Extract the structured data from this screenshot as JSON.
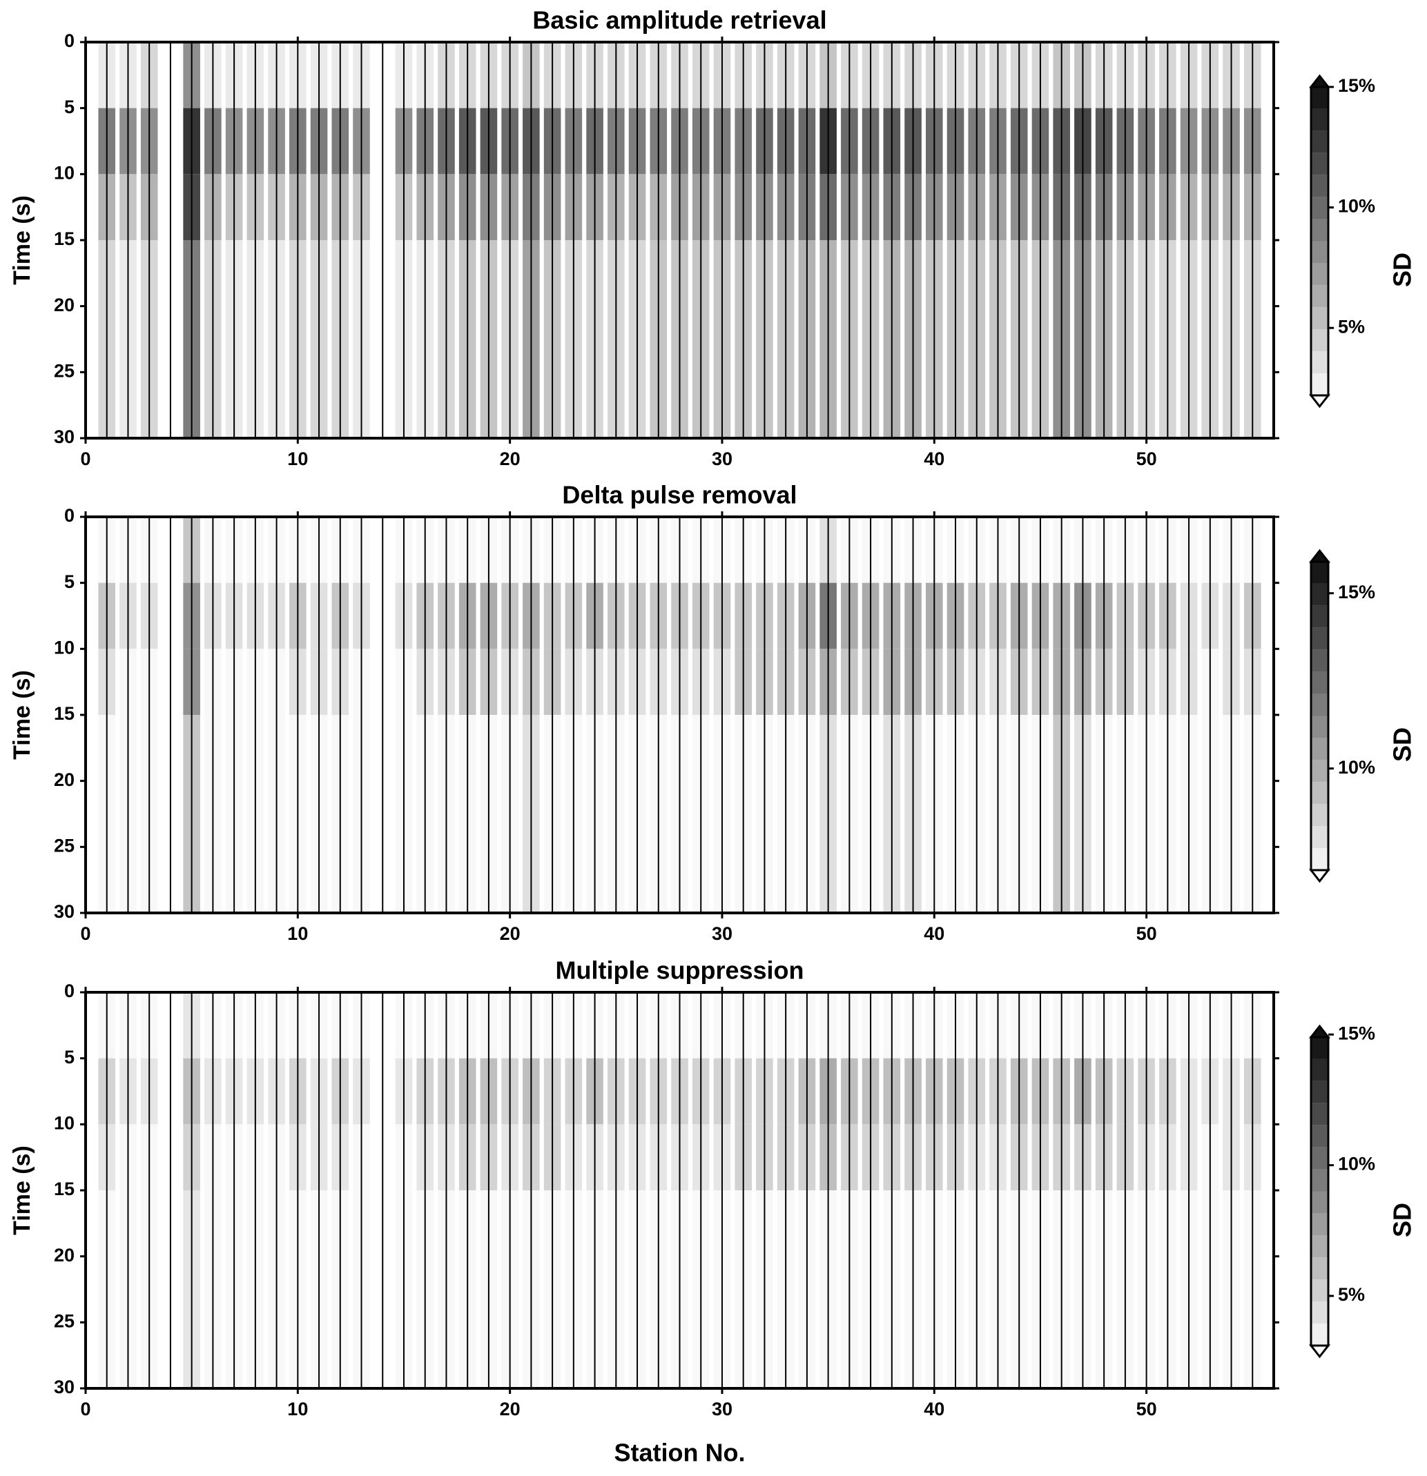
{
  "chart_data": [
    {
      "type": "heatmap",
      "title": "Basic amplitude retrieval",
      "ylabel": "Time (s)",
      "colorbar_label": "SD",
      "x": [
        1,
        2,
        3,
        4,
        5,
        6,
        7,
        8,
        9,
        10,
        11,
        12,
        13,
        14,
        15,
        16,
        17,
        18,
        19,
        20,
        21,
        22,
        23,
        24,
        25,
        26,
        27,
        28,
        29,
        30,
        31,
        32,
        33,
        34,
        35,
        36,
        37,
        38,
        39,
        40,
        41,
        42,
        43,
        44,
        45,
        46,
        47,
        48,
        49,
        50,
        51,
        52,
        53,
        54,
        55
      ],
      "time_bins": [
        0,
        5,
        10,
        15,
        30
      ],
      "values": [
        [
          3,
          3,
          4,
          null,
          8,
          3,
          3,
          3,
          3,
          3,
          3,
          3,
          3,
          null,
          3,
          3,
          4,
          4,
          4,
          4,
          5,
          4,
          4,
          4,
          4,
          4,
          4,
          4,
          4,
          4,
          4,
          4,
          4,
          4,
          5,
          4,
          4,
          4,
          4,
          4,
          4,
          4,
          4,
          4,
          4,
          5,
          5,
          4,
          4,
          4,
          4,
          4,
          4,
          4,
          4
        ],
        [
          9,
          8,
          8,
          null,
          13,
          9,
          8,
          8,
          8,
          9,
          9,
          9,
          8,
          null,
          8,
          9,
          10,
          11,
          11,
          10,
          11,
          10,
          9,
          10,
          9,
          9,
          9,
          9,
          9,
          9,
          9,
          10,
          10,
          10,
          13,
          10,
          10,
          11,
          11,
          10,
          10,
          9,
          9,
          10,
          10,
          11,
          12,
          11,
          10,
          9,
          9,
          8,
          8,
          8,
          8
        ],
        [
          6,
          5,
          6,
          null,
          12,
          6,
          5,
          5,
          5,
          6,
          6,
          6,
          5,
          null,
          5,
          6,
          7,
          8,
          8,
          7,
          9,
          8,
          7,
          7,
          6,
          6,
          6,
          7,
          7,
          7,
          8,
          8,
          8,
          9,
          10,
          8,
          8,
          9,
          9,
          8,
          8,
          7,
          7,
          8,
          8,
          10,
          10,
          9,
          8,
          7,
          7,
          6,
          6,
          6,
          6
        ],
        [
          4,
          3,
          4,
          null,
          9,
          4,
          3,
          3,
          3,
          4,
          4,
          4,
          3,
          null,
          3,
          3,
          4,
          5,
          5,
          4,
          7,
          5,
          4,
          4,
          4,
          4,
          5,
          5,
          5,
          5,
          5,
          5,
          5,
          6,
          6,
          5,
          5,
          6,
          6,
          5,
          5,
          5,
          5,
          5,
          5,
          8,
          8,
          6,
          5,
          4,
          4,
          4,
          4,
          4,
          4
        ]
      ],
      "xlim": [
        0,
        56
      ],
      "ylim": [
        0,
        30
      ],
      "y_inverted": true,
      "xticks": [
        0,
        10,
        20,
        30,
        40,
        50
      ],
      "yticks": [
        0,
        5,
        10,
        15,
        20,
        25,
        30
      ],
      "clim": [
        2.2,
        15
      ],
      "cticks": [
        {
          "value": 5,
          "label": "5%"
        },
        {
          "value": 10,
          "label": "10%"
        },
        {
          "value": 15,
          "label": "15%"
        }
      ]
    },
    {
      "type": "heatmap",
      "title": "Delta pulse removal",
      "ylabel": "Time (s)",
      "colorbar_label": "SD",
      "x": [
        1,
        2,
        3,
        4,
        5,
        6,
        7,
        8,
        9,
        10,
        11,
        12,
        13,
        14,
        15,
        16,
        17,
        18,
        19,
        20,
        21,
        22,
        23,
        24,
        25,
        26,
        27,
        28,
        29,
        30,
        31,
        32,
        33,
        34,
        35,
        36,
        37,
        38,
        39,
        40,
        41,
        42,
        43,
        44,
        45,
        46,
        47,
        48,
        49,
        50,
        51,
        52,
        53,
        54,
        55
      ],
      "time_bins": [
        0,
        5,
        10,
        15,
        30
      ],
      "values": [
        [
          7,
          7,
          7,
          null,
          9,
          7,
          7,
          7,
          7,
          7,
          7,
          7,
          7,
          null,
          7,
          7,
          7,
          7,
          7,
          7,
          7,
          7,
          7,
          7,
          7,
          7,
          7,
          7,
          7,
          7,
          7,
          7,
          7,
          7,
          8,
          7,
          7,
          7,
          7,
          7,
          7,
          7,
          7,
          7,
          7,
          7,
          7,
          7,
          7,
          7,
          7,
          7,
          7,
          7,
          7
        ],
        [
          9,
          8,
          8,
          null,
          11,
          8,
          8,
          8,
          8,
          9,
          8,
          9,
          8,
          null,
          8,
          9,
          9,
          10,
          10,
          9,
          10,
          9,
          9,
          10,
          9,
          9,
          9,
          9,
          9,
          9,
          9,
          9,
          9,
          10,
          12,
          10,
          10,
          10,
          10,
          10,
          10,
          9,
          9,
          10,
          10,
          10,
          11,
          10,
          9,
          9,
          9,
          8,
          8,
          8,
          9
        ],
        [
          8,
          7,
          7,
          null,
          11,
          7,
          7,
          7,
          7,
          8,
          8,
          8,
          7,
          null,
          7,
          8,
          8,
          9,
          9,
          8,
          9,
          9,
          8,
          8,
          8,
          8,
          8,
          8,
          8,
          8,
          9,
          9,
          9,
          9,
          10,
          9,
          9,
          10,
          10,
          9,
          9,
          8,
          8,
          9,
          9,
          10,
          10,
          9,
          9,
          8,
          8,
          8,
          7,
          8,
          8
        ],
        [
          7,
          7,
          7,
          null,
          9,
          7,
          7,
          7,
          7,
          7,
          7,
          7,
          7,
          null,
          7,
          7,
          7,
          7,
          7,
          7,
          8,
          7,
          7,
          7,
          7,
          7,
          7,
          7,
          7,
          7,
          7,
          7,
          7,
          7,
          8,
          7,
          7,
          8,
          8,
          7,
          7,
          7,
          7,
          7,
          7,
          9,
          8,
          7,
          7,
          7,
          7,
          7,
          7,
          7,
          7
        ]
      ],
      "xlim": [
        0,
        56
      ],
      "ylim": [
        0,
        30
      ],
      "y_inverted": true,
      "xticks": [
        0,
        10,
        20,
        30,
        40,
        50
      ],
      "yticks": [
        0,
        5,
        10,
        15,
        20,
        25,
        30
      ],
      "clim": [
        7.1,
        15.9
      ],
      "cticks": [
        {
          "value": 10,
          "label": "10%"
        },
        {
          "value": 15,
          "label": "15%"
        }
      ]
    },
    {
      "type": "heatmap",
      "title": "Multiple suppression",
      "ylabel": "Time (s)",
      "xlabel": "Station No.",
      "colorbar_label": "SD",
      "x": [
        1,
        2,
        3,
        4,
        5,
        6,
        7,
        8,
        9,
        10,
        11,
        12,
        13,
        14,
        15,
        16,
        17,
        18,
        19,
        20,
        21,
        22,
        23,
        24,
        25,
        26,
        27,
        28,
        29,
        30,
        31,
        32,
        33,
        34,
        35,
        36,
        37,
        38,
        39,
        40,
        41,
        42,
        43,
        44,
        45,
        46,
        47,
        48,
        49,
        50,
        51,
        52,
        53,
        54,
        55
      ],
      "time_bins": [
        0,
        5,
        10,
        15,
        30
      ],
      "values": [
        [
          3,
          3,
          3,
          null,
          4,
          3,
          3,
          3,
          3,
          3,
          3,
          3,
          3,
          null,
          3,
          3,
          3,
          3,
          3,
          3,
          3,
          3,
          3,
          3,
          3,
          3,
          3,
          3,
          3,
          3,
          3,
          3,
          3,
          3,
          3,
          3,
          3,
          3,
          3,
          3,
          3,
          3,
          3,
          3,
          3,
          3,
          3,
          3,
          3,
          3,
          3,
          3,
          3,
          3,
          3
        ],
        [
          5,
          4,
          4,
          null,
          6,
          4,
          4,
          4,
          4,
          5,
          4,
          5,
          4,
          null,
          4,
          5,
          5,
          6,
          6,
          5,
          6,
          5,
          5,
          6,
          5,
          5,
          5,
          5,
          5,
          5,
          5,
          5,
          5,
          6,
          7,
          6,
          6,
          6,
          6,
          6,
          6,
          5,
          5,
          6,
          6,
          6,
          7,
          6,
          5,
          5,
          5,
          4,
          4,
          4,
          5
        ],
        [
          4,
          3,
          3,
          null,
          5,
          3,
          3,
          3,
          3,
          4,
          4,
          4,
          3,
          null,
          3,
          4,
          4,
          5,
          5,
          4,
          5,
          5,
          4,
          4,
          4,
          4,
          4,
          4,
          4,
          4,
          5,
          5,
          5,
          5,
          6,
          5,
          5,
          5,
          5,
          5,
          5,
          4,
          4,
          5,
          5,
          5,
          5,
          5,
          5,
          4,
          4,
          4,
          3,
          4,
          4
        ],
        [
          3,
          3,
          3,
          null,
          4,
          3,
          3,
          3,
          3,
          3,
          3,
          3,
          3,
          null,
          3,
          3,
          3,
          3,
          3,
          3,
          3,
          3,
          3,
          3,
          3,
          3,
          3,
          3,
          3,
          3,
          3,
          3,
          3,
          3,
          3,
          3,
          3,
          3,
          3,
          3,
          3,
          3,
          3,
          3,
          3,
          3,
          3,
          3,
          3,
          3,
          3,
          3,
          3,
          3,
          3
        ]
      ],
      "xlim": [
        0,
        56
      ],
      "ylim": [
        0,
        30
      ],
      "y_inverted": true,
      "xticks": [
        0,
        10,
        20,
        30,
        40,
        50
      ],
      "yticks": [
        0,
        5,
        10,
        15,
        20,
        25,
        30
      ],
      "clim": [
        3.1,
        14.9
      ],
      "cticks": [
        {
          "value": 5,
          "label": "5%"
        },
        {
          "value": 10,
          "label": "10%"
        },
        {
          "value": 15,
          "label": "15%"
        }
      ]
    }
  ]
}
